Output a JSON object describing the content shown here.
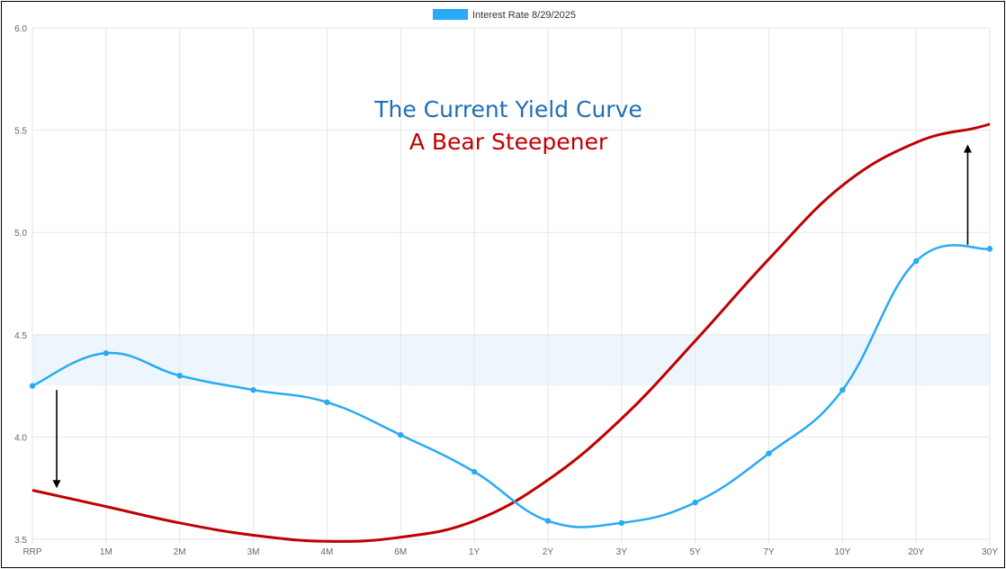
{
  "chart_data": {
    "type": "line",
    "legend": {
      "label": "Interest Rate 8/29/2025",
      "color": "#29aaf5",
      "position": "top"
    },
    "categories": [
      "RRP",
      "1M",
      "2M",
      "3M",
      "4M",
      "6M",
      "1Y",
      "2Y",
      "3Y",
      "5Y",
      "7Y",
      "10Y",
      "20Y",
      "30Y"
    ],
    "ylim": [
      3.5,
      6.0
    ],
    "yticks": [
      "3.5",
      "4.0",
      "4.5",
      "5.0",
      "5.5",
      "6.0"
    ],
    "grid": true,
    "band": {
      "from": 4.25,
      "to": 4.5,
      "color": "#eef6fd"
    },
    "series": [
      {
        "name": "Interest Rate 8/29/2025",
        "color": "#29aaf5",
        "values": [
          4.25,
          4.41,
          4.3,
          4.23,
          4.17,
          4.01,
          3.83,
          3.59,
          3.58,
          3.68,
          3.92,
          4.23,
          4.86,
          4.92
        ]
      },
      {
        "color": "#c00000",
        "values": [
          3.74,
          3.66,
          3.58,
          3.52,
          3.49,
          3.51,
          3.59,
          3.79,
          4.09,
          4.47,
          4.87,
          5.23,
          5.44,
          5.51,
          5.53
        ],
        "x": [
          0,
          1,
          2,
          3,
          4,
          5,
          6,
          7,
          8,
          9,
          10,
          11,
          12,
          12.8,
          13
        ]
      }
    ],
    "annotations": [
      {
        "text": "The Current Yield Curve",
        "color": "#1f6fb5"
      },
      {
        "text": "A Bear Steepener",
        "color": "#c00000"
      }
    ],
    "arrows": [
      {
        "direction": "down",
        "x": 0.33,
        "from": 4.23,
        "to": 3.75
      },
      {
        "direction": "up",
        "x": 12.7,
        "from": 4.94,
        "to": 5.43
      }
    ]
  }
}
